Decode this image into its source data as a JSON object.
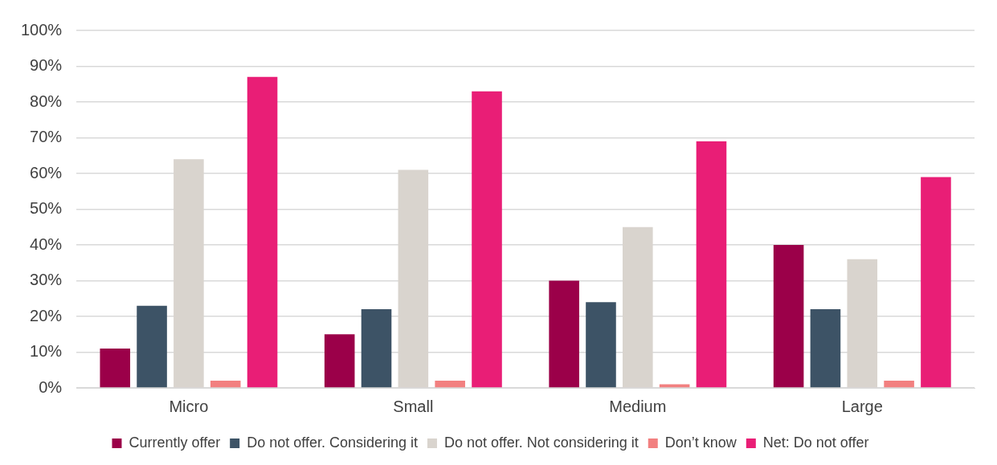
{
  "chart_data": {
    "type": "bar",
    "categories": [
      "Micro",
      "Small",
      "Medium",
      "Large"
    ],
    "series": [
      {
        "name": "Currently offer",
        "color": "#9b0049",
        "values": [
          11,
          15,
          30,
          40
        ]
      },
      {
        "name": "Do not offer. Considering it",
        "color": "#3d5366",
        "values": [
          23,
          22,
          24,
          22
        ]
      },
      {
        "name": "Do not offer. Not considering it",
        "color": "#d9d4ce",
        "values": [
          64,
          61,
          45,
          36
        ]
      },
      {
        "name": "Don’t know",
        "color": "#f28080",
        "values": [
          2,
          2,
          1,
          2
        ]
      },
      {
        "name": "Net: Do not offer",
        "color": "#e91e76",
        "values": [
          87,
          83,
          69,
          59
        ]
      }
    ],
    "ylim": [
      0,
      100
    ],
    "yticks": [
      {
        "value": 0,
        "label": "0%"
      },
      {
        "value": 10,
        "label": "10%"
      },
      {
        "value": 20,
        "label": "20%"
      },
      {
        "value": 30,
        "label": "30%"
      },
      {
        "value": 40,
        "label": "40%"
      },
      {
        "value": 50,
        "label": "50%"
      },
      {
        "value": 60,
        "label": "60%"
      },
      {
        "value": 70,
        "label": "70%"
      },
      {
        "value": 80,
        "label": "80%"
      },
      {
        "value": 90,
        "label": "90%"
      },
      {
        "value": 100,
        "label": "100%"
      }
    ],
    "grid": "y",
    "legend": "bottom"
  }
}
